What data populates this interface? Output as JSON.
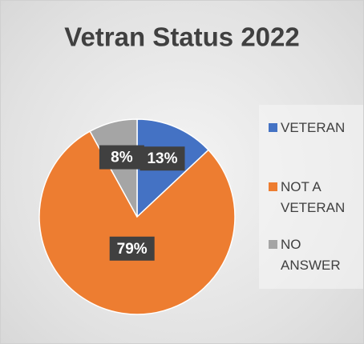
{
  "chart_data": {
    "type": "pie",
    "title": "Vetran Status 2022",
    "categories": [
      "VETERAN",
      "NOT A VETERAN",
      "NO ANSWER"
    ],
    "values": [
      13,
      79,
      8
    ],
    "value_labels": [
      "13%",
      "79%",
      "8%"
    ],
    "colors": [
      "#4472c4",
      "#ed7d31",
      "#a5a5a5"
    ],
    "legend": "right"
  }
}
